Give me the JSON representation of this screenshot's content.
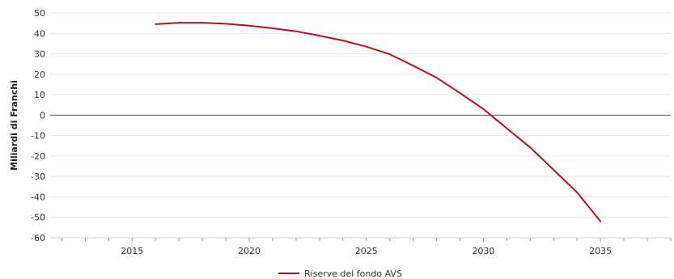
{
  "chart_data": {
    "type": "line",
    "title": "",
    "xlabel": "",
    "ylabel": "Miliardi di Franchi",
    "xlim": [
      2011.5,
      2038
    ],
    "ylim": [
      -60,
      50
    ],
    "yticks": [
      50,
      40,
      30,
      20,
      10,
      0,
      -10,
      -20,
      -30,
      -40,
      -50,
      -60
    ],
    "xticks": [
      2015,
      2020,
      2025,
      2030,
      2035
    ],
    "grid": true,
    "legend_position": "bottom-center",
    "series": [
      {
        "name": "Riserve del fondo AVS",
        "color": "#b5121b",
        "x": [
          2016,
          2017,
          2018,
          2019,
          2020,
          2021,
          2022,
          2023,
          2024,
          2025,
          2026,
          2027,
          2028,
          2029,
          2030,
          2031,
          2032,
          2033,
          2034,
          2035
        ],
        "y": [
          44.5,
          45.2,
          45.2,
          44.7,
          43.8,
          42.5,
          41.0,
          38.9,
          36.5,
          33.5,
          29.8,
          24.2,
          18.3,
          10.8,
          3.0,
          -6.5,
          -15.8,
          -26.8,
          -37.8,
          -52.0
        ]
      }
    ]
  }
}
